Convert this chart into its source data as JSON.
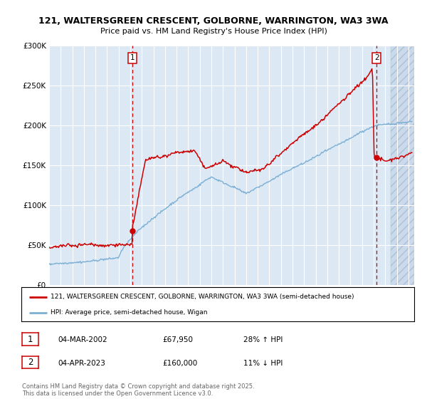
{
  "title_line1": "121, WALTERSGREEN CRESCENT, GOLBORNE, WARRINGTON, WA3 3WA",
  "title_line2": "Price paid vs. HM Land Registry's House Price Index (HPI)",
  "ylim": [
    0,
    300000
  ],
  "xlim_start": 1995.0,
  "xlim_end": 2026.5,
  "bg_color": "#dce9f5",
  "hatch_color": "#c0d4e8",
  "grid_color": "#ffffff",
  "red_line_color": "#cc0000",
  "blue_line_color": "#7bafd4",
  "marker1_date": 2002.17,
  "marker1_value": 67950,
  "marker2_date": 2023.25,
  "marker2_value": 160000,
  "legend_label1": "121, WALTERSGREEN CRESCENT, GOLBORNE, WARRINGTON, WA3 3WA (semi-detached house)",
  "legend_label2": "HPI: Average price, semi-detached house, Wigan",
  "annot1_label": "1",
  "annot1_date": "04-MAR-2002",
  "annot1_price": "£67,950",
  "annot1_hpi": "28% ↑ HPI",
  "annot2_label": "2",
  "annot2_date": "04-APR-2023",
  "annot2_price": "£160,000",
  "annot2_hpi": "11% ↓ HPI",
  "footer": "Contains HM Land Registry data © Crown copyright and database right 2025.\nThis data is licensed under the Open Government Licence v3.0."
}
